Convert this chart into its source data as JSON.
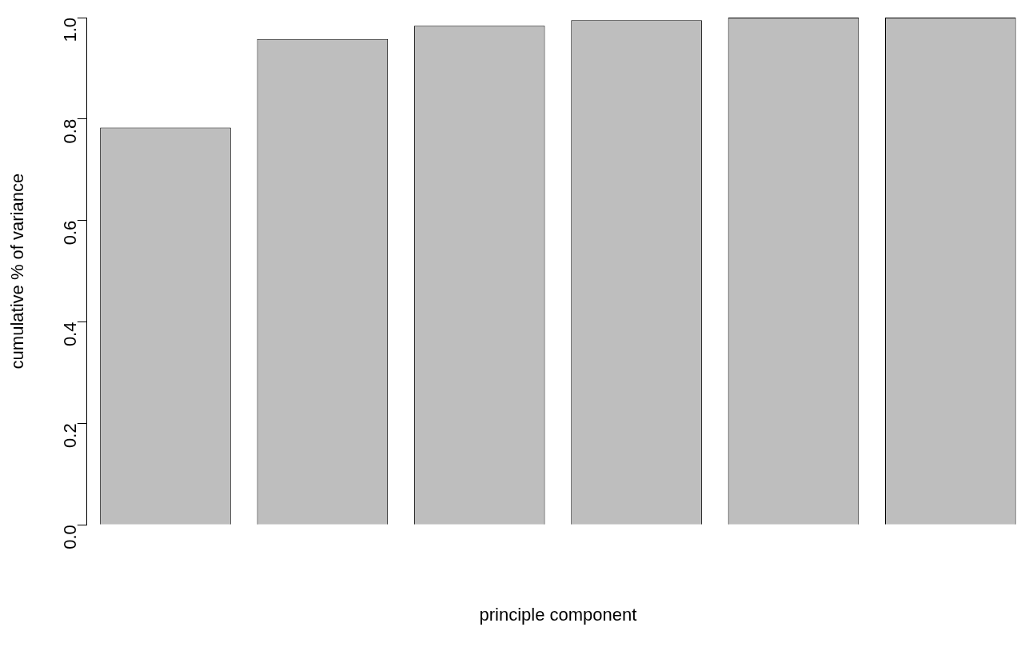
{
  "chart_data": {
    "type": "bar",
    "xlabel": "principle component",
    "ylabel": "cumulative % of variance",
    "categories": [
      null,
      null,
      null,
      null,
      null,
      null
    ],
    "values": [
      0.783,
      0.958,
      0.984,
      0.995,
      1.0,
      1.0
    ],
    "color": "#bebebe",
    "ylim": [
      0,
      1
    ],
    "yticks": [
      {
        "value": 0,
        "label": "0.0"
      },
      {
        "value": 0.2,
        "label": "0.2"
      },
      {
        "value": 0.4,
        "label": "0.4"
      },
      {
        "value": 0.6,
        "label": "0.6"
      },
      {
        "value": 0.8,
        "label": "0.8"
      },
      {
        "value": 1,
        "label": "1.0"
      }
    ]
  }
}
